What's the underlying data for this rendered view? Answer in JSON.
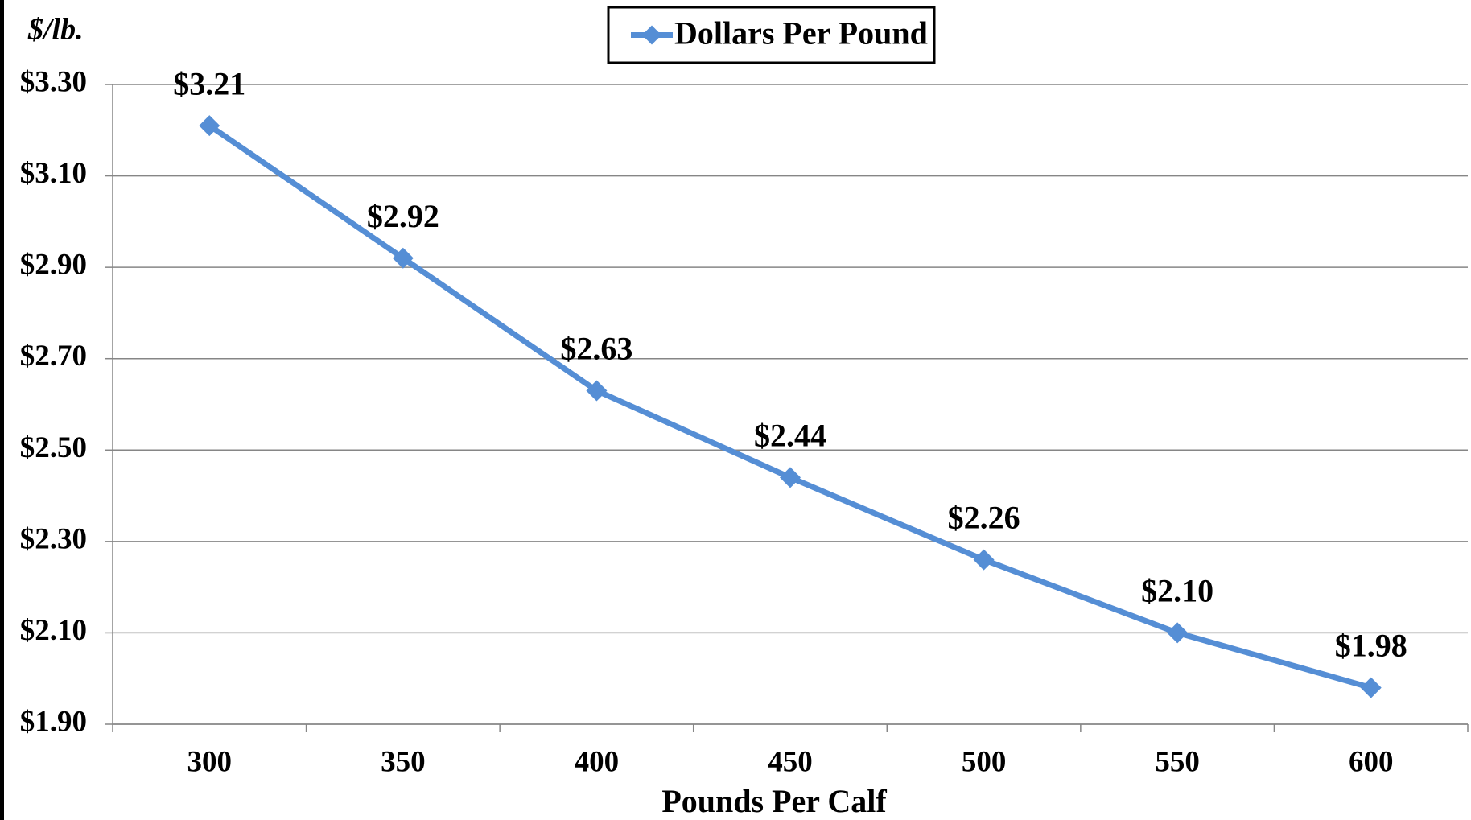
{
  "chart_data": {
    "type": "line",
    "y_axis_title": "$/lb.",
    "x_axis_title": "Pounds Per Calf",
    "categories": [
      "300",
      "350",
      "400",
      "450",
      "500",
      "550",
      "600"
    ],
    "series": [
      {
        "name": "Dollars Per Pound",
        "color": "#558ed5",
        "values": [
          3.21,
          2.92,
          2.63,
          2.44,
          2.26,
          2.1,
          1.98
        ],
        "value_labels": [
          "$3.21",
          "$2.92",
          "$2.63",
          "$2.44",
          "$2.26",
          "$2.10",
          "$1.98"
        ]
      }
    ],
    "ylim": [
      1.9,
      3.3
    ],
    "yticks": [
      {
        "value": 1.9,
        "label": "$1.90"
      },
      {
        "value": 2.1,
        "label": "$2.10"
      },
      {
        "value": 2.3,
        "label": "$2.30"
      },
      {
        "value": 2.5,
        "label": "$2.50"
      },
      {
        "value": 2.7,
        "label": "$2.70"
      },
      {
        "value": 2.9,
        "label": "$2.90"
      },
      {
        "value": 3.1,
        "label": "$3.10"
      },
      {
        "value": 3.3,
        "label": "$3.30"
      }
    ],
    "grid": true,
    "legend": "top"
  }
}
